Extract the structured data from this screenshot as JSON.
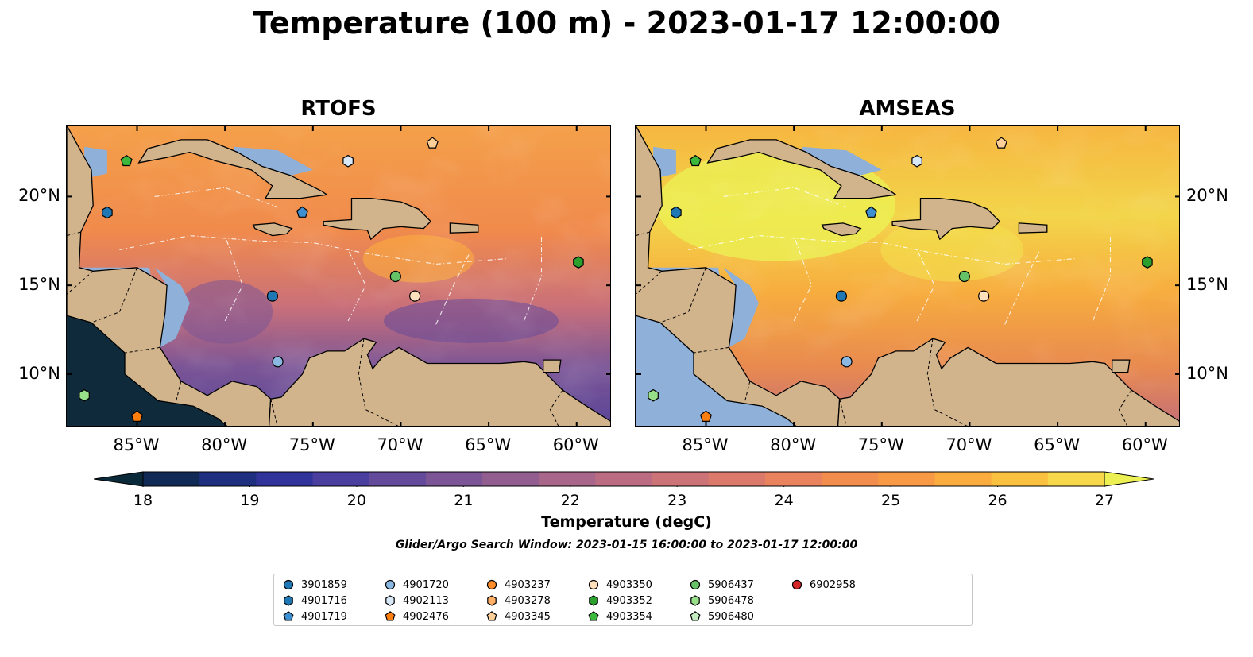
{
  "title": "Temperature (100 m) - 2023-01-17 12:00:00",
  "panels": [
    {
      "title": "RTOFS",
      "style": "cool"
    },
    {
      "title": "AMSEAS",
      "style": "warm"
    }
  ],
  "map": {
    "lon_range": [
      -89,
      -58
    ],
    "lat_range": [
      7,
      24
    ],
    "lat_ticks": [
      {
        "value": 20,
        "label": "20°N"
      },
      {
        "value": 15,
        "label": "15°N"
      },
      {
        "value": 10,
        "label": "10°N"
      }
    ],
    "lon_ticks": [
      {
        "value": -85,
        "label": "85°W"
      },
      {
        "value": -80,
        "label": "80°W"
      },
      {
        "value": -75,
        "label": "75°W"
      },
      {
        "value": -70,
        "label": "70°W"
      },
      {
        "value": -65,
        "label": "65°W"
      },
      {
        "value": -60,
        "label": "60°W"
      }
    ],
    "land_color": "#d2b48c",
    "ocean_color": "#8fb0d8"
  },
  "colorbar": {
    "label": "Temperature (degC)",
    "min": 18,
    "max": 27,
    "ticks": [
      {
        "value": 18,
        "label": "18"
      },
      {
        "value": 19,
        "label": "19"
      },
      {
        "value": 20,
        "label": "20"
      },
      {
        "value": 21,
        "label": "21"
      },
      {
        "value": 22,
        "label": "22"
      },
      {
        "value": 23,
        "label": "23"
      },
      {
        "value": 24,
        "label": "24"
      },
      {
        "value": 25,
        "label": "25"
      },
      {
        "value": 26,
        "label": "26"
      },
      {
        "value": 27,
        "label": "27"
      }
    ],
    "colors": [
      "#0a2a3a",
      "#102a55",
      "#1f2f80",
      "#30339a",
      "#4a3e9e",
      "#634a9a",
      "#7b5596",
      "#925e90",
      "#a8668a",
      "#bb6c82",
      "#cc7377",
      "#db7a6a",
      "#e8835d",
      "#f28d4e",
      "#f89a45",
      "#fbac3e",
      "#fac040",
      "#f6d84a",
      "#ecf052"
    ]
  },
  "search_window": "Glider/Argo Search Window: 2023-01-15 16:00:00 to 2023-01-17 12:00:00",
  "floats": [
    {
      "id": "3901859",
      "marker": "circle",
      "color": "#1f77b4",
      "lon": -77.3,
      "lat": 14.4
    },
    {
      "id": "4901716",
      "marker": "hexagon",
      "color": "#1f77b4",
      "lon": -86.7,
      "lat": 19.1
    },
    {
      "id": "4901719",
      "marker": "pentagon",
      "color": "#3d8fd0",
      "lon": -75.6,
      "lat": 19.1
    },
    {
      "id": "4901720",
      "marker": "circle",
      "color": "#8ab8e0",
      "lon": -77.0,
      "lat": 10.7
    },
    {
      "id": "4902113",
      "marker": "hexagon",
      "color": "#d8e8f6",
      "lon": -73.0,
      "lat": 22.0
    },
    {
      "id": "4902476",
      "marker": "pentagon",
      "color": "#ff7f0e",
      "lon": -85.0,
      "lat": 7.6
    },
    {
      "id": "4903237",
      "marker": "circle",
      "color": "#ff8c2a",
      "lon": null,
      "lat": null
    },
    {
      "id": "4903278",
      "marker": "hexagon",
      "color": "#ffb066",
      "lon": null,
      "lat": null
    },
    {
      "id": "4903345",
      "marker": "pentagon",
      "color": "#ffcf99",
      "lon": -68.2,
      "lat": 23.0
    },
    {
      "id": "4903350",
      "marker": "circle",
      "color": "#ffe0bd",
      "lon": -69.2,
      "lat": 14.4
    },
    {
      "id": "4903352",
      "marker": "hexagon",
      "color": "#2ca02c",
      "lon": -59.9,
      "lat": 16.3
    },
    {
      "id": "4903354",
      "marker": "pentagon",
      "color": "#3cb83c",
      "lon": -85.6,
      "lat": 22.0
    },
    {
      "id": "5906437",
      "marker": "circle",
      "color": "#66c266",
      "lon": -70.3,
      "lat": 15.5
    },
    {
      "id": "5906478",
      "marker": "hexagon",
      "color": "#98df8a",
      "lon": -88.0,
      "lat": 8.8
    },
    {
      "id": "5906480",
      "marker": "pentagon",
      "color": "#c5ebc0",
      "lon": null,
      "lat": null
    },
    {
      "id": "6902958",
      "marker": "circle",
      "color": "#d62728",
      "lon": null,
      "lat": null
    }
  ]
}
